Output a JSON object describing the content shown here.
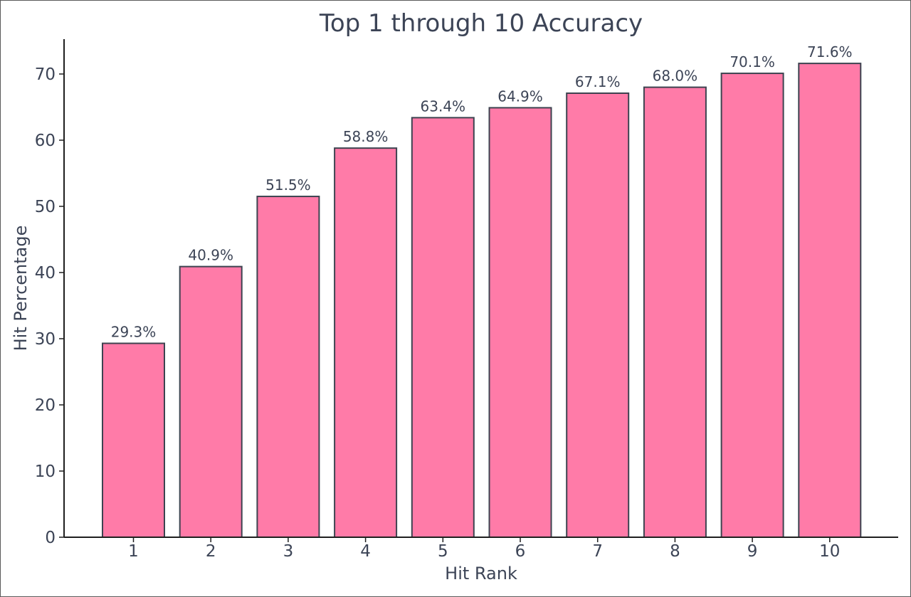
{
  "chart_data": {
    "type": "bar",
    "title": "Top 1 through 10 Accuracy",
    "xlabel": "Hit Rank",
    "ylabel": "Hit Percentage",
    "categories": [
      "1",
      "2",
      "3",
      "4",
      "5",
      "6",
      "7",
      "8",
      "9",
      "10"
    ],
    "values": [
      29.3,
      40.9,
      51.5,
      58.8,
      63.4,
      64.9,
      67.1,
      68.0,
      70.1,
      71.6
    ],
    "data_labels": [
      "29.3%",
      "40.9%",
      "51.5%",
      "58.8%",
      "63.4%",
      "64.9%",
      "67.1%",
      "68.0%",
      "70.1%",
      "71.6%"
    ],
    "yticks": [
      "0",
      "10",
      "20",
      "30",
      "40",
      "50",
      "60",
      "70"
    ],
    "ylim": [
      0,
      75
    ],
    "grid": false,
    "colors": {
      "bar": "#ff7ba8",
      "bar_edge": "#3d4350",
      "text": "#3c4456",
      "axis": "#1f1f1f"
    }
  }
}
